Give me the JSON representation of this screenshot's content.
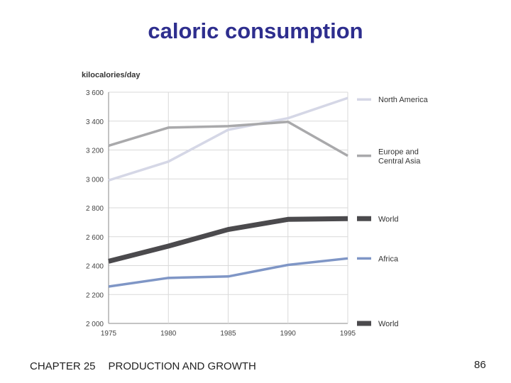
{
  "slide": {
    "title": "caloric consumption",
    "footer_chapter": "CHAPTER 25",
    "footer_title": "PRODUCTION AND GROWTH",
    "page_number": "86"
  },
  "chart_data": {
    "type": "line",
    "title": "",
    "ylabel": "kilocalories/day",
    "xlabel": "",
    "x": [
      1975,
      1980,
      1985,
      1990,
      1995
    ],
    "x_tick_labels": [
      "1975",
      "1980",
      "1985",
      "1990",
      "1995"
    ],
    "ylim": [
      2000,
      3600
    ],
    "y_ticks": [
      2000,
      2200,
      2400,
      2600,
      2800,
      3000,
      3200,
      3400,
      3600
    ],
    "y_tick_labels": [
      "2 000",
      "2 200",
      "2 400",
      "2 600",
      "2 800",
      "3 000",
      "3 200",
      "3 400",
      "3 600"
    ],
    "grid": true,
    "legend_position": "right",
    "series": [
      {
        "name": "North America",
        "color": "#d5d7e6",
        "values": [
          2990,
          3120,
          3340,
          3420,
          3560
        ]
      },
      {
        "name": "Europe and Central Asia",
        "color": "#a9a9ab",
        "values": [
          3230,
          3355,
          3365,
          3395,
          3160
        ]
      },
      {
        "name": "World",
        "color": "#4b4a4d",
        "values": [
          2430,
          2535,
          2650,
          2720,
          2725
        ]
      },
      {
        "name": "Africa",
        "color": "#7f96c6",
        "values": [
          2255,
          2315,
          2325,
          2405,
          2450
        ]
      }
    ],
    "extra_legend": {
      "name": "World",
      "color": "#4b4a4d"
    }
  }
}
